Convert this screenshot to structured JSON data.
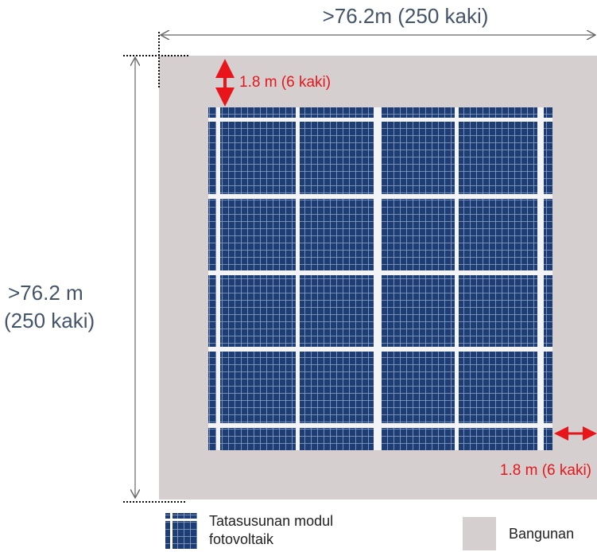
{
  "dimensions": {
    "width_label": ">76.2m (250 kaki)",
    "height_label": [
      ">76.2 m",
      "(250 kaki)"
    ],
    "top_setback": "1.8 m (6 kaki)",
    "side_setback": "1.8 m (6 kaki)"
  },
  "legend": {
    "array": [
      "Tatasusunan modul",
      "fotovoltaik"
    ],
    "building": "Bangunan"
  }
}
